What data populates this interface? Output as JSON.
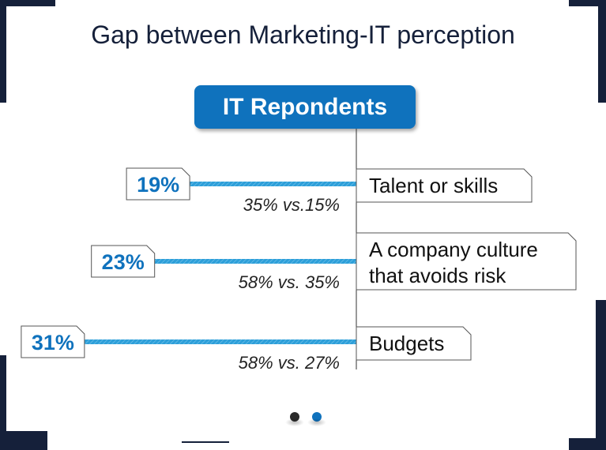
{
  "page": {
    "title": "Gap between Marketing-IT perception",
    "badge": "IT Repondents"
  },
  "chart_data": {
    "type": "bar",
    "orientation": "horizontal",
    "categories": [
      "Talent or skills",
      "A company culture that avoids risk",
      "Budgets"
    ],
    "category_lines": [
      [
        "Talent or skills"
      ],
      [
        "A company culture",
        "that avoids risk"
      ],
      [
        "Budgets"
      ]
    ],
    "values": [
      19,
      23,
      31
    ],
    "value_labels": [
      "19%",
      "23%",
      "31%"
    ],
    "comparison_labels": [
      "35% vs.15%",
      "58% vs. 35%",
      "58% vs. 27%"
    ],
    "unit": "%",
    "colors": {
      "bar": "#2d9fd9",
      "value_text": "#0f72bd",
      "axis": "#333333"
    }
  },
  "pagination": {
    "count": 2,
    "active": 2,
    "colors": [
      "#2b2b2b",
      "#0f72bd"
    ]
  }
}
